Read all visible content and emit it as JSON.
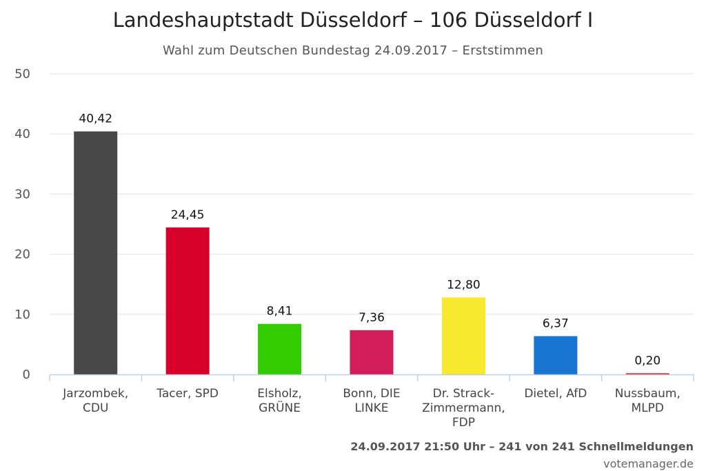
{
  "header": {
    "title": "Landeshauptstadt Düsseldorf – 106 Düsseldorf I",
    "subtitle": "Wahl zum Deutschen Bundestag 24.09.2017 – Erststimmen"
  },
  "footer": {
    "credit": "24.09.2017 21:50 Uhr – 241 von 241 Schnellmeldungen",
    "source": "votemanager.de"
  },
  "chart_data": {
    "type": "bar",
    "categories": [
      [
        "Jarzombek,",
        "CDU"
      ],
      [
        "Tacer, SPD"
      ],
      [
        "Elsholz,",
        "GRÜNE"
      ],
      [
        "Bonn, DIE",
        "LINKE"
      ],
      [
        "Dr. Strack-",
        "Zimmermann,",
        "FDP"
      ],
      [
        "Dietel, AfD"
      ],
      [
        "Nussbaum,",
        "MLPD"
      ]
    ],
    "values": [
      40.42,
      24.45,
      8.41,
      7.36,
      12.8,
      6.37,
      0.2
    ],
    "value_labels": [
      "40,42",
      "24,45",
      "8,41",
      "7,36",
      "12,80",
      "6,37",
      "0,20"
    ],
    "colors": [
      "#484848",
      "#d7002a",
      "#33cc00",
      "#d11e5a",
      "#f7e930",
      "#1874d1",
      "#e4211f"
    ],
    "yticks": [
      "0",
      "10",
      "20",
      "30",
      "40",
      "50"
    ],
    "ylim": [
      0,
      50
    ],
    "grid": true,
    "legend": "none"
  }
}
